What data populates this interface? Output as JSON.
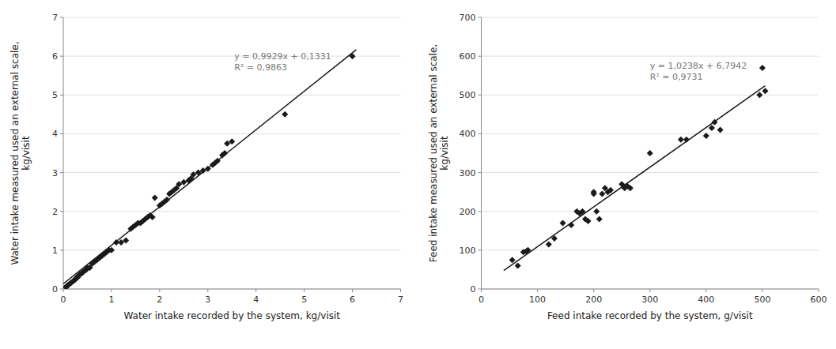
{
  "chart_data": [
    {
      "type": "scatter",
      "xlabel": "Water intake recorded by the system, kg/visit",
      "ylabel": "Water intake measured used an external scale,\nkg/visit",
      "xlim": [
        0,
        7
      ],
      "ylim": [
        0,
        7
      ],
      "xticks": [
        0,
        1,
        2,
        3,
        4,
        5,
        6,
        7
      ],
      "yticks": [
        0,
        1,
        2,
        3,
        4,
        5,
        6,
        7
      ],
      "grid": "y",
      "annotation": {
        "lines": [
          "y = 0,9929x + 0,1331",
          "R² = 0,9863"
        ],
        "x": 3.55,
        "y": 6.15,
        "color": "#777777"
      },
      "series": [
        {
          "type": "scatter",
          "marker": "diamond",
          "color": "#1a1a1a",
          "x": [
            0.05,
            0.07,
            0.08,
            0.1,
            0.12,
            0.15,
            0.17,
            0.2,
            0.22,
            0.24,
            0.25,
            0.27,
            0.28,
            0.3,
            0.32,
            0.35,
            0.38,
            0.4,
            0.42,
            0.45,
            0.48,
            0.5,
            0.55,
            0.6,
            0.65,
            0.7,
            0.75,
            0.8,
            0.85,
            0.9,
            0.95,
            1.0,
            1.1,
            1.2,
            1.3,
            1.4,
            1.45,
            1.5,
            1.55,
            1.6,
            1.65,
            1.7,
            1.75,
            1.8,
            1.85,
            1.9,
            2.0,
            2.05,
            2.1,
            2.15,
            2.2,
            2.25,
            2.3,
            2.35,
            2.4,
            2.5,
            2.6,
            2.65,
            2.7,
            2.8,
            2.9,
            3.0,
            3.1,
            3.15,
            3.2,
            3.3,
            3.35,
            3.4,
            3.5,
            4.6,
            6.0
          ],
          "values": [
            0.05,
            0.06,
            0.07,
            0.1,
            0.12,
            0.15,
            0.17,
            0.2,
            0.22,
            0.24,
            0.25,
            0.28,
            0.3,
            0.3,
            0.35,
            0.38,
            0.4,
            0.42,
            0.45,
            0.48,
            0.5,
            0.55,
            0.55,
            0.65,
            0.7,
            0.75,
            0.8,
            0.85,
            0.9,
            0.95,
            1.0,
            1.0,
            1.2,
            1.2,
            1.25,
            1.55,
            1.6,
            1.65,
            1.7,
            1.7,
            1.75,
            1.8,
            1.85,
            1.9,
            1.85,
            2.35,
            2.15,
            2.2,
            2.25,
            2.3,
            2.45,
            2.5,
            2.55,
            2.6,
            2.7,
            2.75,
            2.8,
            2.85,
            2.95,
            3.0,
            3.05,
            3.1,
            3.2,
            3.25,
            3.3,
            3.45,
            3.5,
            3.75,
            3.8,
            4.5,
            6.0
          ]
        },
        {
          "type": "line",
          "color": "#1a1a1a",
          "x": [
            0,
            6.08
          ],
          "values": [
            0.1331,
            6.169932
          ]
        }
      ]
    },
    {
      "type": "scatter",
      "xlabel": "Feed intake recorded by the system, g/visit",
      "ylabel": "Feed intake measured used an external scale,\nkg/visit",
      "xlim": [
        0,
        600
      ],
      "ylim": [
        0,
        700
      ],
      "xticks": [
        0,
        100,
        200,
        300,
        400,
        500,
        600
      ],
      "yticks": [
        0,
        100,
        200,
        300,
        400,
        500,
        600,
        700
      ],
      "grid": "y",
      "annotation": {
        "lines": [
          "y = 1,0238x + 6,7942",
          "R² = 0,9731"
        ],
        "x": 300,
        "y": 590,
        "color": "#777777"
      },
      "series": [
        {
          "type": "scatter",
          "marker": "diamond",
          "color": "#1a1a1a",
          "x": [
            55,
            65,
            75,
            80,
            83,
            120,
            130,
            145,
            160,
            170,
            175,
            180,
            185,
            190,
            200,
            200,
            205,
            210,
            215,
            220,
            225,
            230,
            250,
            255,
            260,
            265,
            300,
            355,
            365,
            400,
            410,
            415,
            425,
            495,
            500,
            505
          ],
          "values": [
            75,
            60,
            95,
            97,
            100,
            115,
            130,
            170,
            165,
            200,
            195,
            200,
            180,
            175,
            250,
            245,
            200,
            180,
            245,
            260,
            250,
            255,
            270,
            260,
            265,
            260,
            350,
            385,
            385,
            395,
            415,
            430,
            410,
            500,
            570,
            510
          ]
        },
        {
          "type": "line",
          "color": "#1a1a1a",
          "x": [
            40,
            505
          ],
          "values": [
            47.7462,
            523.8132
          ]
        }
      ]
    }
  ]
}
